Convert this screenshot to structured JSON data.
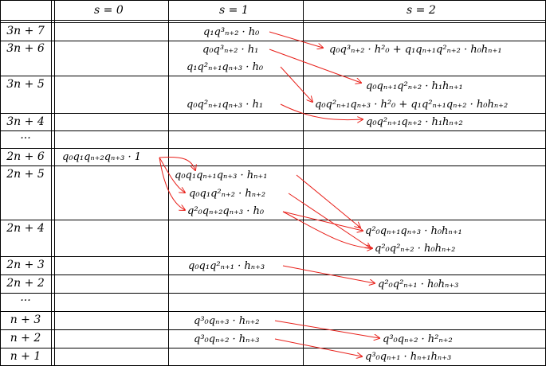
{
  "columns": [
    "",
    "s = 0",
    "s = 1",
    "s = 2"
  ],
  "rows": [
    {
      "label": "3n + 7",
      "s0": [],
      "s1": [
        "q₁q³ₙ₊₂ · h₀"
      ],
      "s2": [
        "q₀q³ₙ₊₂ · h²₀ + q₁qₙ₊₁q²ₙ₊₂ · h₀hₙ₊₁"
      ]
    },
    {
      "label": "3n + 6",
      "s0": [],
      "s1": [
        "q₀q³ₙ₊₂ · h₁",
        "q₁q²ₙ₊₁qₙ₊₃ · h₀"
      ],
      "s2": []
    },
    {
      "label": "3n + 5",
      "s0": [],
      "s1": [
        "q₀q²ₙ₊₁qₙ₊₃ · h₁"
      ],
      "s2": [
        "q₀qₙ₊₁q²ₙ₊₂ · h₁hₙ₊₁",
        "q₀q²ₙ₊₁qₙ₊₃ · h²₀ + q₁q²ₙ₊₁qₙ₊₂ · h₀hₙ₊₂"
      ]
    },
    {
      "label": "3n + 4",
      "s0": [],
      "s1": [],
      "s2": [
        "q₀q²ₙ₊₁qₙ₊₂ · h₁hₙ₊₂"
      ]
    },
    {
      "label": "···",
      "s0": [],
      "s1": [],
      "s2": []
    },
    {
      "label": "2n + 6",
      "s0": [
        "q₀q₁qₙ₊₂qₙ₊₃ · 1"
      ],
      "s1": [],
      "s2": []
    },
    {
      "label": "2n + 5",
      "s0": [],
      "s1": [
        "q₀q₁qₙ₊₁qₙ₊₃ · hₙ₊₁",
        "q₀q₁q²ₙ₊₂ · hₙ₊₂",
        "q²₀qₙ₊₂qₙ₊₃ · h₀"
      ],
      "s2": []
    },
    {
      "label": "2n + 4",
      "s0": [],
      "s1": [],
      "s2": [
        "q²₀qₙ₊₁qₙ₊₃ · h₀hₙ₊₁",
        "q²₀q²ₙ₊₂ · h₀hₙ₊₂"
      ]
    },
    {
      "label": "2n + 3",
      "s0": [],
      "s1": [
        "q₀q₁q²ₙ₊₁ · hₙ₊₃"
      ],
      "s2": []
    },
    {
      "label": "2n + 2",
      "s0": [],
      "s1": [],
      "s2": [
        "q²₀q²ₙ₊₁ · h₀hₙ₊₃"
      ]
    },
    {
      "label": "···",
      "s0": [],
      "s1": [],
      "s2": []
    },
    {
      "label": "n + 3",
      "s0": [],
      "s1": [
        "q³₀qₙ₊₃ · hₙ₊₂"
      ],
      "s2": []
    },
    {
      "label": "n + 2",
      "s0": [],
      "s1": [
        "q³₀qₙ₊₂ · hₙ₊₃"
      ],
      "s2": [
        "q³₀qₙ₊₂ · h²ₙ₊₂"
      ]
    },
    {
      "label": "n + 1",
      "s0": [],
      "s1": [],
      "s2": [
        "q³₀qₙ₊₁ · hₙ₊₁hₙ₊₃"
      ]
    }
  ],
  "arrow_color": "#e8201a"
}
